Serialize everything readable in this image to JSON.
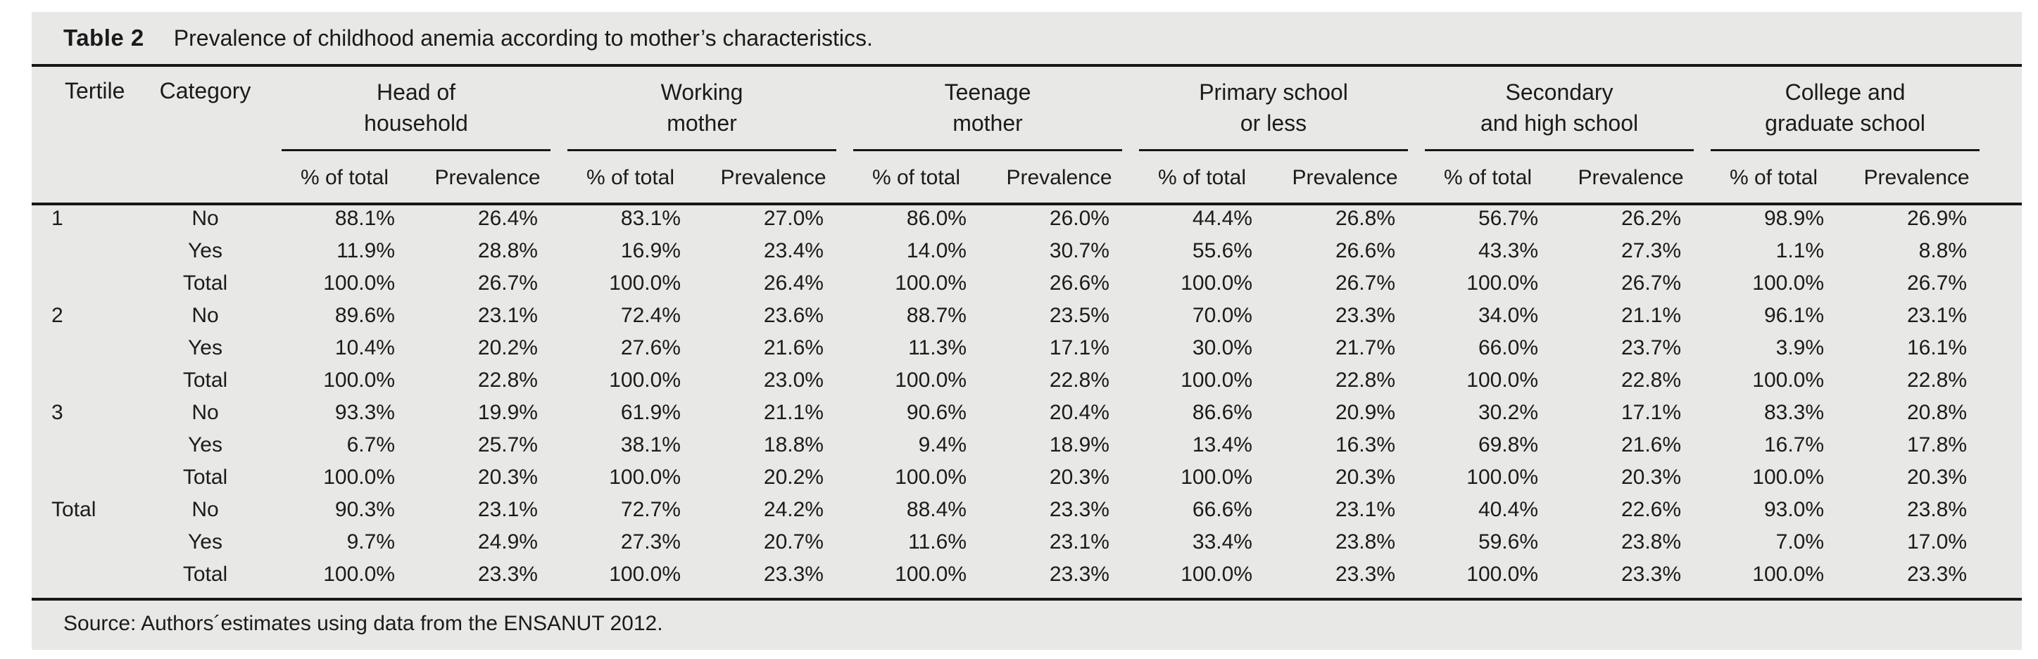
{
  "caption": {
    "label": "Table 2",
    "text": "Prevalence of childhood anemia according to mother’s characteristics."
  },
  "headers": {
    "tertile": "Tertile",
    "category": "Category",
    "groups": [
      {
        "line1": "Head of",
        "line2": "household"
      },
      {
        "line1": "Working",
        "line2": "mother"
      },
      {
        "line1": "Teenage",
        "line2": "mother"
      },
      {
        "line1": "Primary school",
        "line2": "or less"
      },
      {
        "line1": "Secondary",
        "line2": "and high school"
      },
      {
        "line1": "College and",
        "line2": "graduate school"
      }
    ],
    "subheaders": {
      "pct_of_total": "% of total",
      "prevalence": "Prevalence"
    }
  },
  "rows": [
    {
      "tertile": "1",
      "category": "No",
      "values": [
        "88.1%",
        "26.4%",
        "83.1%",
        "27.0%",
        "86.0%",
        "26.0%",
        "44.4%",
        "26.8%",
        "56.7%",
        "26.2%",
        "98.9%",
        "26.9%"
      ]
    },
    {
      "tertile": "",
      "category": "Yes",
      "values": [
        "11.9%",
        "28.8%",
        "16.9%",
        "23.4%",
        "14.0%",
        "30.7%",
        "55.6%",
        "26.6%",
        "43.3%",
        "27.3%",
        "1.1%",
        "8.8%"
      ]
    },
    {
      "tertile": "",
      "category": "Total",
      "values": [
        "100.0%",
        "26.7%",
        "100.0%",
        "26.4%",
        "100.0%",
        "26.6%",
        "100.0%",
        "26.7%",
        "100.0%",
        "26.7%",
        "100.0%",
        "26.7%"
      ]
    },
    {
      "tertile": "2",
      "category": "No",
      "values": [
        "89.6%",
        "23.1%",
        "72.4%",
        "23.6%",
        "88.7%",
        "23.5%",
        "70.0%",
        "23.3%",
        "34.0%",
        "21.1%",
        "96.1%",
        "23.1%"
      ]
    },
    {
      "tertile": "",
      "category": "Yes",
      "values": [
        "10.4%",
        "20.2%",
        "27.6%",
        "21.6%",
        "11.3%",
        "17.1%",
        "30.0%",
        "21.7%",
        "66.0%",
        "23.7%",
        "3.9%",
        "16.1%"
      ]
    },
    {
      "tertile": "",
      "category": "Total",
      "values": [
        "100.0%",
        "22.8%",
        "100.0%",
        "23.0%",
        "100.0%",
        "22.8%",
        "100.0%",
        "22.8%",
        "100.0%",
        "22.8%",
        "100.0%",
        "22.8%"
      ]
    },
    {
      "tertile": "3",
      "category": "No",
      "values": [
        "93.3%",
        "19.9%",
        "61.9%",
        "21.1%",
        "90.6%",
        "20.4%",
        "86.6%",
        "20.9%",
        "30.2%",
        "17.1%",
        "83.3%",
        "20.8%"
      ]
    },
    {
      "tertile": "",
      "category": "Yes",
      "values": [
        "6.7%",
        "25.7%",
        "38.1%",
        "18.8%",
        "9.4%",
        "18.9%",
        "13.4%",
        "16.3%",
        "69.8%",
        "21.6%",
        "16.7%",
        "17.8%"
      ]
    },
    {
      "tertile": "",
      "category": "Total",
      "values": [
        "100.0%",
        "20.3%",
        "100.0%",
        "20.2%",
        "100.0%",
        "20.3%",
        "100.0%",
        "20.3%",
        "100.0%",
        "20.3%",
        "100.0%",
        "20.3%"
      ]
    },
    {
      "tertile": "Total",
      "category": "No",
      "values": [
        "90.3%",
        "23.1%",
        "72.7%",
        "24.2%",
        "88.4%",
        "23.3%",
        "66.6%",
        "23.1%",
        "40.4%",
        "22.6%",
        "93.0%",
        "23.8%"
      ]
    },
    {
      "tertile": "",
      "category": "Yes",
      "values": [
        "9.7%",
        "24.9%",
        "27.3%",
        "20.7%",
        "11.6%",
        "23.1%",
        "33.4%",
        "23.8%",
        "59.6%",
        "23.8%",
        "7.0%",
        "17.0%"
      ]
    },
    {
      "tertile": "",
      "category": "Total",
      "values": [
        "100.0%",
        "23.3%",
        "100.0%",
        "23.3%",
        "100.0%",
        "23.3%",
        "100.0%",
        "23.3%",
        "100.0%",
        "23.3%",
        "100.0%",
        "23.3%"
      ]
    }
  ],
  "source": "Source: Authors´estimates using data from the ENSANUT 2012.",
  "colors": {
    "panel_bg": "#e8e8e7",
    "text": "#1b1b1b",
    "rule": "#171717"
  }
}
